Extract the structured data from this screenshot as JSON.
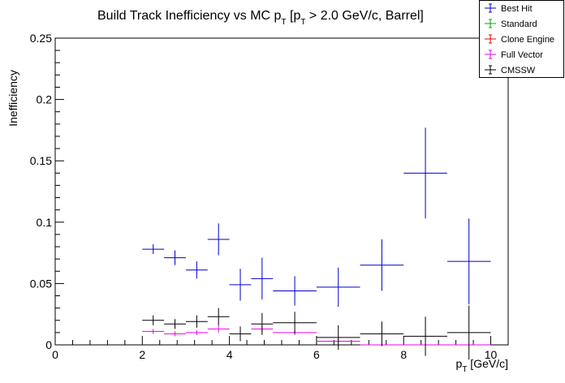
{
  "chart_data": {
    "type": "scatter",
    "title": {
      "main": "Build Track Inefficiency vs MC p",
      "main_sub": "T",
      "cut": " [p",
      "cut_sub": "T",
      "cut_rest": " > 2.0 GeV/c, Barrel]"
    },
    "xlabel": {
      "main": "p",
      "sub": "T",
      "rest": " [GeV/c]"
    },
    "ylabel": "Inefficiency",
    "xlim": [
      0,
      10.4
    ],
    "ylim": [
      0,
      0.25
    ],
    "x_ticks": [
      0,
      2,
      4,
      6,
      8,
      10
    ],
    "x_tick_labels": [
      "0",
      "2",
      "4",
      "6",
      "8",
      "10"
    ],
    "y_ticks": [
      0,
      0.05,
      0.1,
      0.15,
      0.2,
      0.25
    ],
    "y_tick_labels": [
      "0",
      "0.05",
      "0.1",
      "0.15",
      "0.2",
      "0.25"
    ],
    "grid": false,
    "legend_position": "top-right",
    "series": [
      {
        "name": "Best Hit",
        "color": "#0000cc",
        "points": [
          {
            "x": 2.25,
            "xerr": 0.25,
            "y": 0.078,
            "yerr": 0.004
          },
          {
            "x": 2.75,
            "xerr": 0.25,
            "y": 0.071,
            "yerr": 0.006
          },
          {
            "x": 3.25,
            "xerr": 0.25,
            "y": 0.061,
            "yerr": 0.007
          },
          {
            "x": 3.75,
            "xerr": 0.25,
            "y": 0.086,
            "yerr": 0.013
          },
          {
            "x": 4.25,
            "xerr": 0.25,
            "y": 0.049,
            "yerr": 0.013
          },
          {
            "x": 4.75,
            "xerr": 0.25,
            "y": 0.054,
            "yerr": 0.017
          },
          {
            "x": 5.5,
            "xerr": 0.5,
            "y": 0.044,
            "yerr": 0.012
          },
          {
            "x": 6.5,
            "xerr": 0.5,
            "y": 0.047,
            "yerr": 0.016
          },
          {
            "x": 7.5,
            "xerr": 0.5,
            "y": 0.065,
            "yerr": 0.021
          },
          {
            "x": 8.5,
            "xerr": 0.5,
            "y": 0.14,
            "yerr": 0.037
          },
          {
            "x": 9.5,
            "xerr": 0.5,
            "y": 0.068,
            "yerr": 0.035
          }
        ]
      },
      {
        "name": "Standard",
        "color": "#00aa00",
        "points": []
      },
      {
        "name": "Clone Engine",
        "color": "#ee0000",
        "points": []
      },
      {
        "name": "Full Vector",
        "color": "#ee00ee",
        "points": [
          {
            "x": 2.25,
            "xerr": 0.25,
            "y": 0.011,
            "yerr": 0.002
          },
          {
            "x": 2.75,
            "xerr": 0.25,
            "y": 0.009,
            "yerr": 0.002
          },
          {
            "x": 3.25,
            "xerr": 0.25,
            "y": 0.01,
            "yerr": 0.002
          },
          {
            "x": 3.75,
            "xerr": 0.25,
            "y": 0.013,
            "yerr": 0.003
          },
          {
            "x": 4.75,
            "xerr": 0.25,
            "y": 0.013,
            "yerr": 0.003
          },
          {
            "x": 5.5,
            "xerr": 0.5,
            "y": 0.01,
            "yerr": 0.002
          },
          {
            "x": 6.5,
            "xerr": 0.5,
            "y": 0.003,
            "yerr": 0.002
          },
          {
            "x": 7.5,
            "xerr": 0.5,
            "y": 0.0,
            "yerr": 0.0
          },
          {
            "x": 8.5,
            "xerr": 0.5,
            "y": 0.0,
            "yerr": 0.0
          },
          {
            "x": 9.5,
            "xerr": 0.5,
            "y": 0.0,
            "yerr": 0.0
          }
        ]
      },
      {
        "name": "CMSSW",
        "color": "#000000",
        "points": [
          {
            "x": 2.25,
            "xerr": 0.25,
            "y": 0.02,
            "yerr": 0.004
          },
          {
            "x": 2.75,
            "xerr": 0.25,
            "y": 0.017,
            "yerr": 0.004
          },
          {
            "x": 3.25,
            "xerr": 0.25,
            "y": 0.019,
            "yerr": 0.005
          },
          {
            "x": 3.75,
            "xerr": 0.25,
            "y": 0.023,
            "yerr": 0.007
          },
          {
            "x": 4.25,
            "xerr": 0.25,
            "y": 0.009,
            "yerr": 0.006
          },
          {
            "x": 4.75,
            "xerr": 0.25,
            "y": 0.017,
            "yerr": 0.009
          },
          {
            "x": 5.5,
            "xerr": 0.5,
            "y": 0.018,
            "yerr": 0.009
          },
          {
            "x": 6.5,
            "xerr": 0.5,
            "y": 0.006,
            "yerr": 0.01
          },
          {
            "x": 7.5,
            "xerr": 0.5,
            "y": 0.009,
            "yerr": 0.01
          },
          {
            "x": 8.5,
            "xerr": 0.5,
            "y": 0.007,
            "yerr": 0.016
          },
          {
            "x": 9.5,
            "xerr": 0.5,
            "y": 0.01,
            "yerr": 0.022
          }
        ]
      }
    ]
  }
}
